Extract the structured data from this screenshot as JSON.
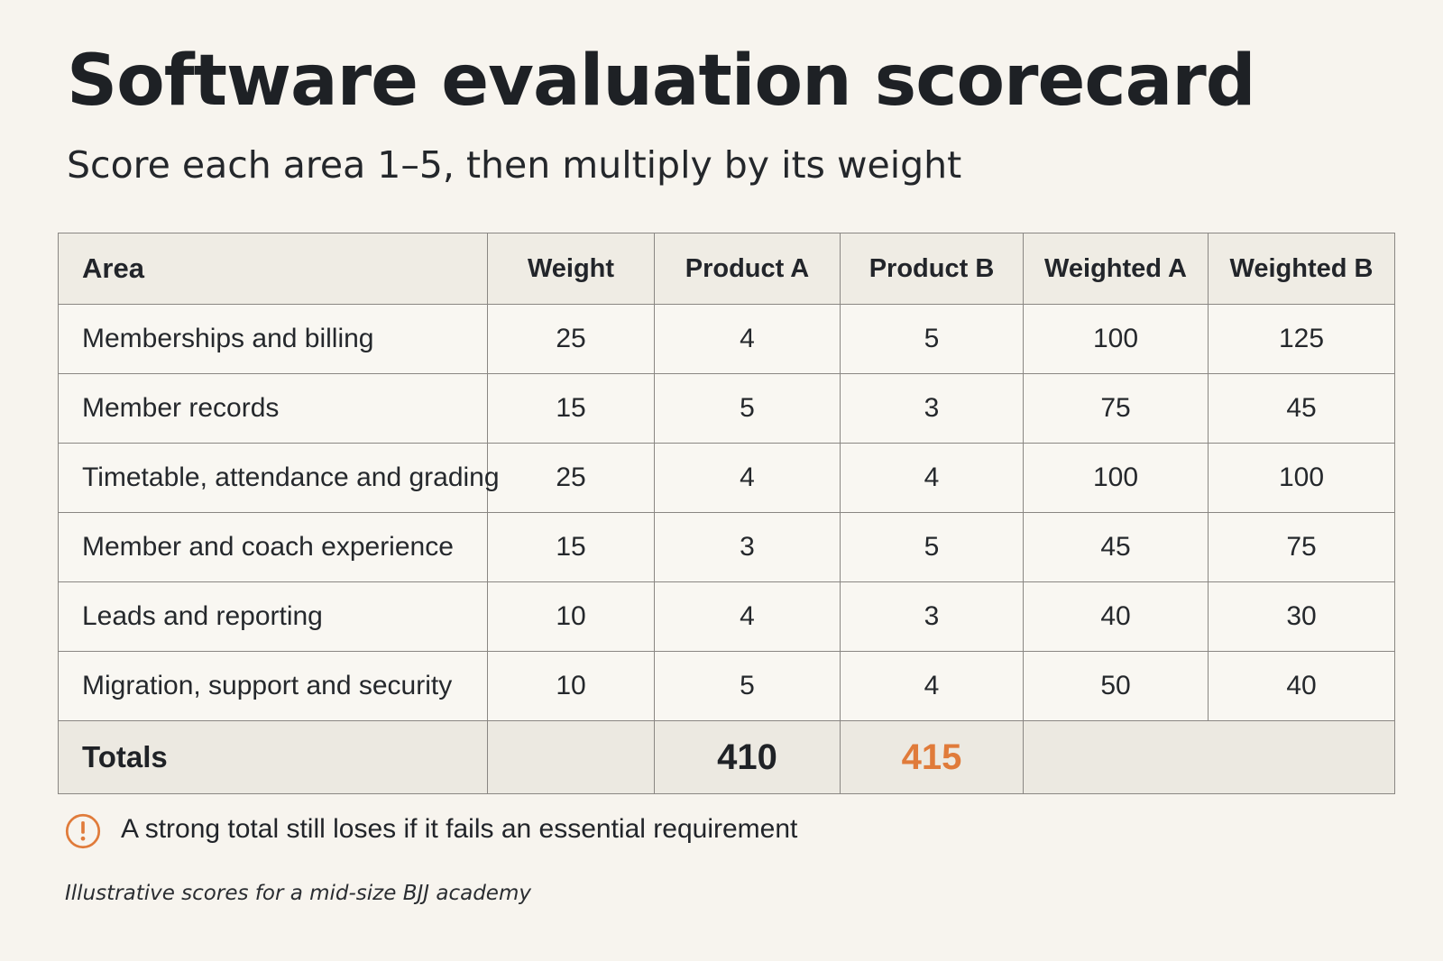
{
  "title": "Software evaluation scorecard",
  "subtitle": "Score each area 1–5, then multiply by its weight",
  "table": {
    "headers": [
      "Area",
      "Weight",
      "Product A",
      "Product B",
      "Weighted A",
      "Weighted B"
    ],
    "rows": [
      [
        "Memberships and billing",
        "25",
        "4",
        "5",
        "100",
        "125"
      ],
      [
        "Member records",
        "15",
        "5",
        "3",
        "75",
        "45"
      ],
      [
        "Timetable, attendance and grading",
        "25",
        "4",
        "4",
        "100",
        "100"
      ],
      [
        "Member and coach experience",
        "15",
        "3",
        "5",
        "45",
        "75"
      ],
      [
        "Leads and reporting",
        "10",
        "4",
        "3",
        "40",
        "30"
      ],
      [
        "Migration, support and security",
        "10",
        "5",
        "4",
        "50",
        "40"
      ]
    ],
    "totals": {
      "label": "Totals",
      "product_a": "410",
      "product_b": "415"
    }
  },
  "note": {
    "icon": "warning-circle-icon",
    "text": "A strong total still loses if it fails an essential requirement"
  },
  "source": "Illustrative scores for a mid-size BJJ academy",
  "colors": {
    "background": "#f7f4ee",
    "accent": "#e07b3a",
    "header_fill": "#efece4",
    "border": "#8a8783"
  }
}
